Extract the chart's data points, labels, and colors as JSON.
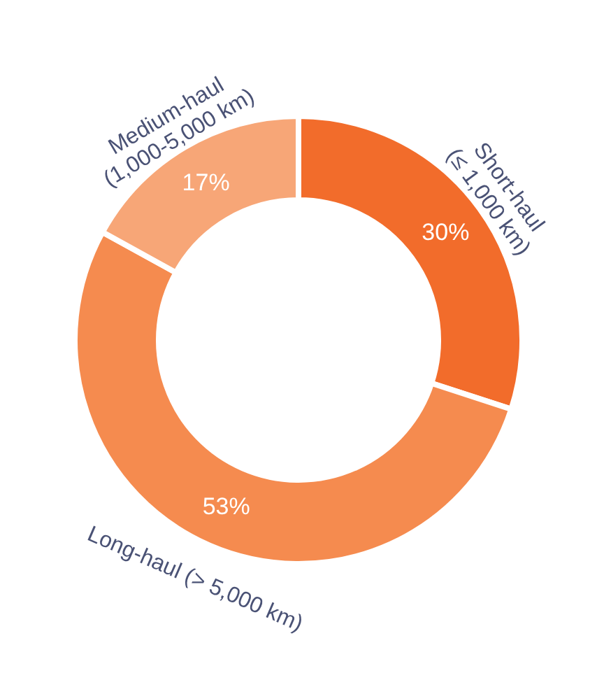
{
  "chart_data": {
    "type": "donut",
    "categories": [
      "Short-haul\n(≤ 1,000 km)",
      "Long-haul (> 5,000 km)",
      "Medium-haul\n(1,000-5,000 km)"
    ],
    "values": [
      30,
      53,
      17
    ],
    "colors": [
      "#f26c2b",
      "#f58b4f",
      "#f7a677"
    ],
    "value_labels": [
      "30%",
      "53%",
      "17%"
    ]
  }
}
